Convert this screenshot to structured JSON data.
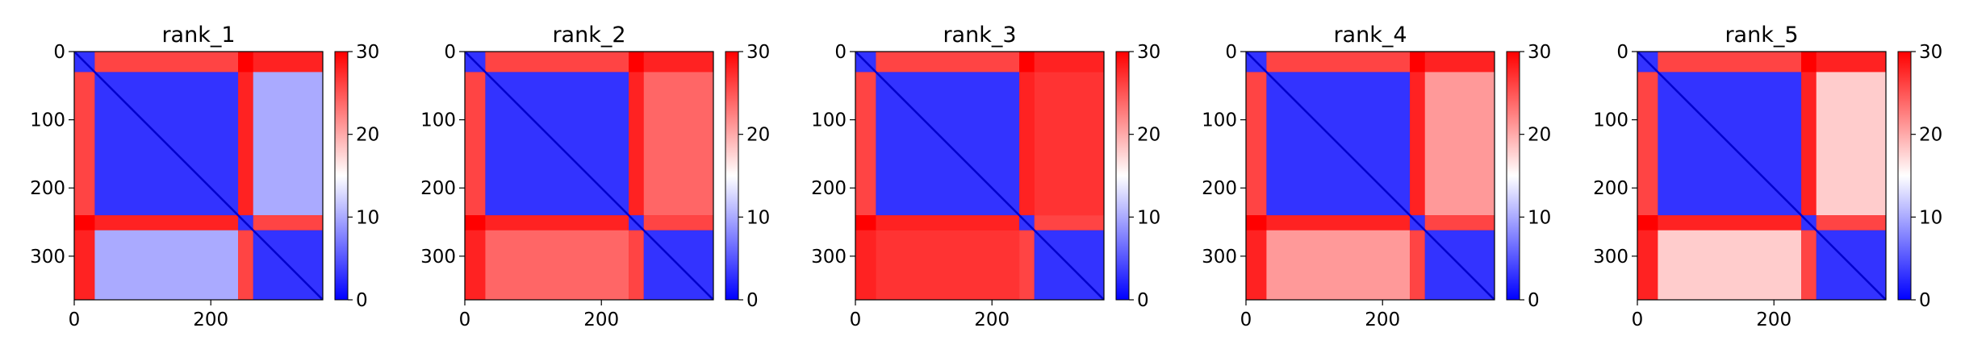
{
  "chart_data": {
    "type": "heatmap",
    "colormap": "bwr",
    "matrix_size": 364,
    "panels": [
      {
        "title": "rank_1",
        "domains": [
          [
            0,
            30
          ],
          [
            30,
            240
          ],
          [
            240,
            262
          ],
          [
            262,
            364
          ]
        ],
        "bg": 30,
        "inter_values": [
          [
            0,
            1,
            26
          ],
          [
            0,
            2,
            30
          ],
          [
            0,
            3,
            28
          ],
          [
            1,
            2,
            28
          ],
          [
            1,
            3,
            10
          ],
          [
            2,
            3,
            26
          ]
        ],
        "intra_value": 3
      },
      {
        "title": "rank_2",
        "domains": [
          [
            0,
            30
          ],
          [
            30,
            240
          ],
          [
            240,
            262
          ],
          [
            262,
            364
          ]
        ],
        "bg": 30,
        "inter_values": [
          [
            0,
            1,
            26
          ],
          [
            0,
            2,
            30
          ],
          [
            0,
            3,
            28
          ],
          [
            1,
            2,
            28
          ],
          [
            1,
            3,
            24
          ],
          [
            2,
            3,
            26
          ]
        ],
        "intra_value": 3
      },
      {
        "title": "rank_3",
        "domains": [
          [
            0,
            30
          ],
          [
            30,
            240
          ],
          [
            240,
            262
          ],
          [
            262,
            364
          ]
        ],
        "bg": 30,
        "inter_values": [
          [
            0,
            1,
            26
          ],
          [
            0,
            2,
            30
          ],
          [
            0,
            3,
            28
          ],
          [
            1,
            2,
            28
          ],
          [
            1,
            3,
            27
          ],
          [
            2,
            3,
            26
          ]
        ],
        "intra_value": 3
      },
      {
        "title": "rank_4",
        "domains": [
          [
            0,
            30
          ],
          [
            30,
            240
          ],
          [
            240,
            262
          ],
          [
            262,
            364
          ]
        ],
        "bg": 30,
        "inter_values": [
          [
            0,
            1,
            26
          ],
          [
            0,
            2,
            30
          ],
          [
            0,
            3,
            28
          ],
          [
            1,
            2,
            28
          ],
          [
            1,
            3,
            21
          ],
          [
            2,
            3,
            26
          ]
        ],
        "intra_value": 3
      },
      {
        "title": "rank_5",
        "domains": [
          [
            0,
            30
          ],
          [
            30,
            240
          ],
          [
            240,
            262
          ],
          [
            262,
            364
          ]
        ],
        "bg": 30,
        "inter_values": [
          [
            0,
            1,
            26
          ],
          [
            0,
            2,
            30
          ],
          [
            0,
            3,
            28
          ],
          [
            1,
            2,
            28
          ],
          [
            1,
            3,
            18
          ],
          [
            2,
            3,
            26
          ]
        ],
        "intra_value": 3
      }
    ],
    "xticks": [
      0,
      200
    ],
    "yticks": [
      0,
      100,
      200,
      300
    ],
    "colorbar": {
      "min": 0,
      "max": 30,
      "ticks": [
        0,
        10,
        20,
        30
      ]
    }
  }
}
